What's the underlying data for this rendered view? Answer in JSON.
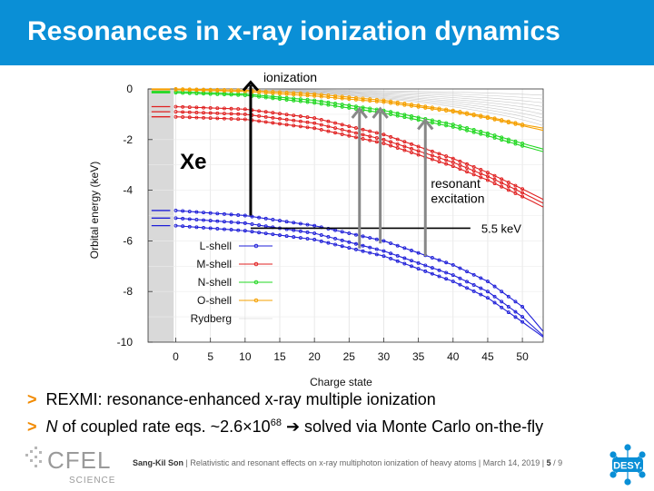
{
  "slide": {
    "title": "Resonances in x-ray ionization dynamics",
    "bullets": [
      {
        "text": "REXMI: resonance-enhanced x-ray multiple ionization"
      },
      {
        "prefix_italic": "N",
        "text_a": " of coupled rate eqs. ~2.6×10",
        "sup": "68",
        "arrow": " ➔ ",
        "text_b": "solved via Monte Carlo on-the-fly"
      }
    ],
    "bullet_marker": ">",
    "accent_color": "#0a8fd6",
    "bullet_color": "#f18a00"
  },
  "footer": {
    "author": "Sang-Kil Son",
    "talk": "Relativistic and resonant effects on x-ray multiphoton ionization of heavy atoms",
    "date": "March 14, 2019",
    "page": "5",
    "total": "/ 9",
    "logo_left_text": "CFEL",
    "logo_left_sub": "SCIENCE",
    "logo_right_text": "DESY."
  },
  "chart_data": {
    "type": "line",
    "xlabel": "Charge state",
    "ylabel": "Orbital energy (keV)",
    "xlim": [
      -4,
      53
    ],
    "ylim": [
      -10,
      0
    ],
    "xticks": [
      0,
      5,
      10,
      15,
      20,
      25,
      30,
      35,
      40,
      45,
      50
    ],
    "yticks": [
      0,
      -2,
      -4,
      -6,
      -8,
      -10
    ],
    "grid": true,
    "legend_position": "lower-left inside plot",
    "element_label": "Xe",
    "series": [
      {
        "name": "L-shell",
        "color": "#1f1fd8",
        "marker": "circle",
        "x_end": 54,
        "lines": [
          {
            "x": [
              0,
              10,
              20,
              30,
              40,
              45,
              50,
              54
            ],
            "y": [
              -4.8,
              -5.0,
              -5.4,
              -6.0,
              -6.95,
              -7.6,
              -8.6,
              -9.9
            ]
          },
          {
            "x": [
              0,
              10,
              20,
              30,
              40,
              45,
              50,
              54
            ],
            "y": [
              -5.1,
              -5.3,
              -5.7,
              -6.4,
              -7.35,
              -8.0,
              -9.0,
              -10.0
            ]
          },
          {
            "x": [
              0,
              10,
              20,
              30,
              40,
              45,
              50,
              54
            ],
            "y": [
              -5.4,
              -5.6,
              -5.95,
              -6.6,
              -7.6,
              -8.25,
              -9.2,
              -10.0
            ]
          }
        ]
      },
      {
        "name": "M-shell",
        "color": "#e02020",
        "marker": "circle",
        "x_end": 54,
        "lines": [
          {
            "x": [
              0,
              10,
              20,
              30,
              40,
              45,
              50,
              54
            ],
            "y": [
              -0.7,
              -0.8,
              -1.15,
              -1.8,
              -2.75,
              -3.3,
              -3.95,
              -4.5
            ]
          },
          {
            "x": [
              0,
              10,
              20,
              30,
              40,
              45,
              50,
              54
            ],
            "y": [
              -0.9,
              -1.0,
              -1.35,
              -2.0,
              -2.9,
              -3.45,
              -4.1,
              -4.65
            ]
          },
          {
            "x": [
              0,
              10,
              20,
              30,
              40,
              45,
              50,
              54
            ],
            "y": [
              -1.1,
              -1.2,
              -1.55,
              -2.15,
              -3.05,
              -3.6,
              -4.25,
              -4.8
            ]
          }
        ]
      },
      {
        "name": "N-shell",
        "color": "#22d822",
        "marker": "circle",
        "x_end": 54,
        "lines": [
          {
            "x": [
              0,
              10,
              20,
              30,
              40,
              45,
              50,
              54
            ],
            "y": [
              -0.1,
              -0.2,
              -0.45,
              -0.85,
              -1.4,
              -1.75,
              -2.15,
              -2.45
            ]
          },
          {
            "x": [
              0,
              10,
              20,
              30,
              40,
              45,
              50,
              54
            ],
            "y": [
              -0.15,
              -0.25,
              -0.55,
              -0.95,
              -1.5,
              -1.85,
              -2.25,
              -2.55
            ]
          }
        ]
      },
      {
        "name": "O-shell",
        "color": "#f5a000",
        "marker": "circle",
        "x_end": 54,
        "lines": [
          {
            "x": [
              0,
              10,
              20,
              30,
              40,
              45,
              50,
              54
            ],
            "y": [
              0.0,
              -0.05,
              -0.2,
              -0.45,
              -0.85,
              -1.1,
              -1.4,
              -1.6
            ]
          },
          {
            "x": [
              0,
              10,
              20,
              30,
              40,
              45,
              50,
              54
            ],
            "y": [
              -0.03,
              -0.1,
              -0.28,
              -0.52,
              -0.9,
              -1.15,
              -1.45,
              -1.7
            ]
          }
        ]
      },
      {
        "name": "Rydberg",
        "color": "#c8c8c8",
        "marker": "none"
      }
    ],
    "rydberg_fan_end_y": [
      -0.25,
      -0.4,
      -0.55,
      -0.7,
      -0.85,
      -1.0,
      -1.15,
      -1.3,
      -1.45
    ],
    "annotations": {
      "ionization": {
        "label": "ionization",
        "x": 10.8,
        "y_from": -5.0,
        "y_to": 0.3
      },
      "threshold": {
        "label": "5.5 keV",
        "x_from": 10.8,
        "x_to": 42.5,
        "y": -5.5
      },
      "resonant": {
        "label_line1": "resonant",
        "label_line2": "excitation",
        "arrows": [
          {
            "x": 26.5,
            "y_from": -6.3,
            "y_to": -0.75
          },
          {
            "x": 29.5,
            "y_from": -6.1,
            "y_to": -0.75
          },
          {
            "x": 36.0,
            "y_from": -6.6,
            "y_to": -1.2
          }
        ]
      }
    },
    "neutral_levels_tick": "lines drawn left of x=0 at shell energies"
  }
}
